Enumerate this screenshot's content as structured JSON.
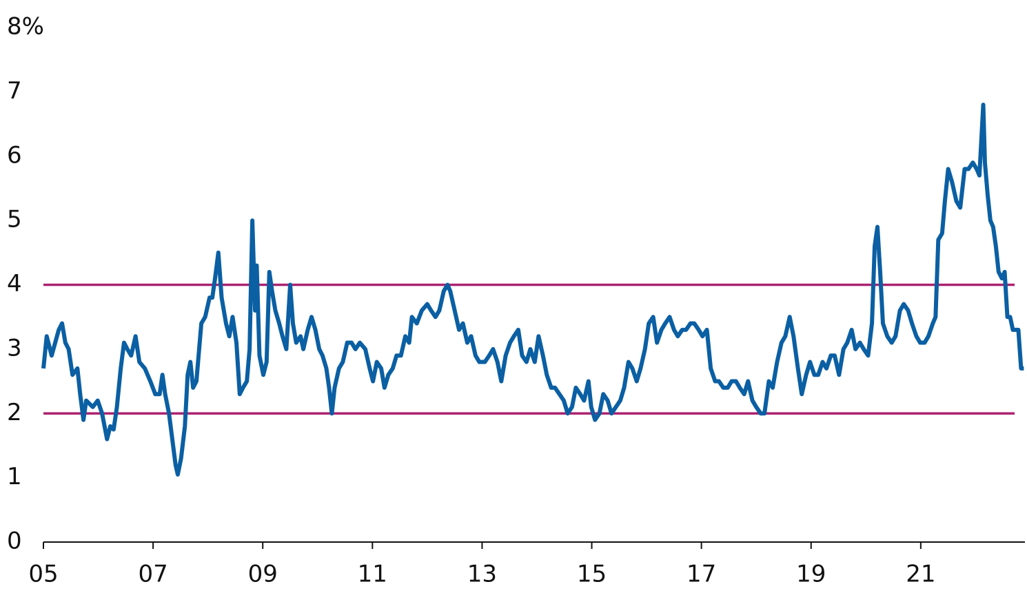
{
  "chart_data": {
    "type": "line",
    "x": [
      2005.0,
      2005.06,
      2005.15,
      2005.28,
      2005.34,
      2005.4,
      2005.46,
      2005.53,
      2005.62,
      2005.67,
      2005.73,
      2005.78,
      2005.9,
      2005.99,
      2006.07,
      2006.16,
      2006.22,
      2006.28,
      2006.34,
      2006.41,
      2006.47,
      2006.53,
      2006.6,
      2006.68,
      2006.75,
      2006.85,
      2006.95,
      2007.04,
      2007.12,
      2007.17,
      2007.22,
      2007.29,
      2007.35,
      2007.41,
      2007.45,
      2007.51,
      2007.58,
      2007.63,
      2007.68,
      2007.73,
      2007.79,
      2007.88,
      2007.95,
      2008.03,
      2008.08,
      2008.13,
      2008.19,
      2008.25,
      2008.33,
      2008.39,
      2008.45,
      2008.52,
      2008.58,
      2008.64,
      2008.71,
      2008.76,
      2008.81,
      2008.86,
      2008.89,
      2008.94,
      2009.01,
      2009.07,
      2009.12,
      2009.17,
      2009.23,
      2009.3,
      2009.36,
      2009.43,
      2009.5,
      2009.55,
      2009.61,
      2009.69,
      2009.74,
      2009.82,
      2009.89,
      2009.96,
      2010.03,
      2010.09,
      2010.16,
      2010.21,
      2010.26,
      2010.31,
      2010.39,
      2010.46,
      2010.54,
      2010.62,
      2010.69,
      2010.77,
      2010.87,
      2010.95,
      2011.01,
      2011.08,
      2011.16,
      2011.22,
      2011.29,
      2011.37,
      2011.44,
      2011.52,
      2011.6,
      2011.67,
      2011.72,
      2011.81,
      2011.9,
      2012.0,
      2012.07,
      2012.15,
      2012.22,
      2012.3,
      2012.37,
      2012.42,
      2012.5,
      2012.58,
      2012.65,
      2012.73,
      2012.8,
      2012.88,
      2012.95,
      2013.05,
      2013.13,
      2013.2,
      2013.28,
      2013.35,
      2013.43,
      2013.51,
      2013.58,
      2013.66,
      2013.73,
      2013.81,
      2013.88,
      2013.96,
      2014.03,
      2014.11,
      2014.18,
      2014.26,
      2014.33,
      2014.41,
      2014.49,
      2014.56,
      2014.64,
      2014.71,
      2014.79,
      2014.86,
      2014.94,
      2014.99,
      2015.06,
      2015.14,
      2015.21,
      2015.29,
      2015.36,
      2015.44,
      2015.52,
      2015.59,
      2015.67,
      2015.74,
      2015.82,
      2015.89,
      2015.97,
      2016.04,
      2016.12,
      2016.19,
      2016.27,
      2016.34,
      2016.42,
      2016.5,
      2016.57,
      2016.65,
      2016.72,
      2016.8,
      2016.87,
      2016.95,
      2017.02,
      2017.1,
      2017.17,
      2017.25,
      2017.32,
      2017.4,
      2017.48,
      2017.55,
      2017.63,
      2017.7,
      2017.78,
      2017.85,
      2017.93,
      2018.0,
      2018.08,
      2018.15,
      2018.23,
      2018.3,
      2018.38,
      2018.46,
      2018.53,
      2018.61,
      2018.68,
      2018.76,
      2018.83,
      2018.91,
      2018.98,
      2019.06,
      2019.13,
      2019.21,
      2019.28,
      2019.36,
      2019.43,
      2019.51,
      2019.59,
      2019.66,
      2019.74,
      2019.81,
      2019.89,
      2019.96,
      2020.04,
      2020.11,
      2020.16,
      2020.21,
      2020.26,
      2020.31,
      2020.39,
      2020.47,
      2020.54,
      2020.62,
      2020.69,
      2020.77,
      2020.84,
      2020.92,
      2020.99,
      2021.07,
      2021.14,
      2021.22,
      2021.27,
      2021.32,
      2021.39,
      2021.44,
      2021.5,
      2021.57,
      2021.65,
      2021.72,
      2021.8,
      2021.87,
      2021.95,
      2022.02,
      2022.07,
      2022.14,
      2022.17,
      2022.22,
      2022.27,
      2022.32,
      2022.37,
      2022.42,
      2022.48,
      2022.53,
      2022.58,
      2022.63,
      2022.68,
      2022.73,
      2022.78,
      2022.83,
      2022.88
    ],
    "series": [
      {
        "color": "#0b5fa3",
        "values": [
          2.7,
          3.2,
          2.9,
          3.3,
          3.4,
          3.1,
          3.0,
          2.6,
          2.7,
          2.3,
          1.9,
          2.2,
          2.1,
          2.2,
          2.0,
          1.6,
          1.8,
          1.75,
          2.1,
          2.7,
          3.1,
          3.0,
          2.9,
          3.2,
          2.8,
          2.7,
          2.5,
          2.3,
          2.3,
          2.6,
          2.3,
          2.0,
          1.6,
          1.2,
          1.05,
          1.3,
          1.8,
          2.6,
          2.8,
          2.4,
          2.5,
          3.4,
          3.5,
          3.8,
          3.8,
          4.1,
          4.5,
          3.8,
          3.4,
          3.2,
          3.5,
          3.1,
          2.3,
          2.4,
          2.5,
          3.0,
          5.0,
          3.6,
          4.3,
          2.9,
          2.6,
          2.8,
          4.2,
          3.9,
          3.6,
          3.4,
          3.2,
          3.0,
          4.0,
          3.4,
          3.1,
          3.2,
          3.0,
          3.3,
          3.5,
          3.3,
          3.0,
          2.9,
          2.7,
          2.4,
          2.0,
          2.4,
          2.7,
          2.8,
          3.1,
          3.1,
          3.0,
          3.1,
          3.0,
          2.7,
          2.5,
          2.8,
          2.7,
          2.4,
          2.6,
          2.7,
          2.9,
          2.9,
          3.2,
          3.1,
          3.5,
          3.4,
          3.6,
          3.7,
          3.6,
          3.5,
          3.6,
          3.9,
          4.0,
          3.9,
          3.6,
          3.3,
          3.4,
          3.1,
          3.2,
          2.9,
          2.8,
          2.8,
          2.9,
          3.0,
          2.8,
          2.5,
          2.9,
          3.1,
          3.2,
          3.3,
          2.9,
          2.8,
          3.0,
          2.8,
          3.2,
          2.9,
          2.6,
          2.4,
          2.4,
          2.3,
          2.2,
          2.0,
          2.1,
          2.4,
          2.3,
          2.2,
          2.5,
          2.1,
          1.9,
          2.0,
          2.3,
          2.2,
          2.0,
          2.1,
          2.2,
          2.4,
          2.8,
          2.7,
          2.5,
          2.7,
          3.0,
          3.4,
          3.5,
          3.1,
          3.3,
          3.4,
          3.5,
          3.3,
          3.2,
          3.3,
          3.3,
          3.4,
          3.4,
          3.3,
          3.2,
          3.3,
          2.7,
          2.5,
          2.5,
          2.4,
          2.4,
          2.5,
          2.5,
          2.4,
          2.3,
          2.5,
          2.2,
          2.1,
          2.0,
          2.0,
          2.5,
          2.4,
          2.8,
          3.1,
          3.2,
          3.5,
          3.2,
          2.7,
          2.3,
          2.6,
          2.8,
          2.6,
          2.6,
          2.8,
          2.7,
          2.9,
          2.9,
          2.6,
          3.0,
          3.1,
          3.3,
          3.0,
          3.1,
          3.0,
          2.9,
          3.4,
          4.6,
          4.9,
          4.2,
          3.4,
          3.2,
          3.1,
          3.2,
          3.6,
          3.7,
          3.6,
          3.4,
          3.2,
          3.1,
          3.1,
          3.2,
          3.4,
          3.5,
          4.7,
          4.8,
          5.3,
          5.8,
          5.6,
          5.3,
          5.2,
          5.8,
          5.8,
          5.9,
          5.8,
          5.7,
          6.8,
          5.9,
          5.4,
          5.0,
          4.9,
          4.6,
          4.2,
          4.1,
          4.2,
          3.5,
          3.5,
          3.3,
          3.3,
          3.3,
          2.7,
          2.7
        ]
      }
    ],
    "reference_lines": [
      2,
      4
    ],
    "reference_color": "#ac2370",
    "xlim": [
      2005,
      2022.9
    ],
    "xticks": [
      {
        "value": 2005,
        "label": "05"
      },
      {
        "value": 2007,
        "label": "07"
      },
      {
        "value": 2009,
        "label": "09"
      },
      {
        "value": 2011,
        "label": "11"
      },
      {
        "value": 2013,
        "label": "13"
      },
      {
        "value": 2015,
        "label": "15"
      },
      {
        "value": 2017,
        "label": "17"
      },
      {
        "value": 2019,
        "label": "19"
      },
      {
        "value": 2021,
        "label": "21"
      }
    ],
    "ylim": [
      0,
      8
    ],
    "yticks": [
      0,
      1,
      2,
      3,
      4,
      5,
      6,
      7,
      {
        "value": 8,
        "label": "8%"
      }
    ],
    "grid": false
  }
}
